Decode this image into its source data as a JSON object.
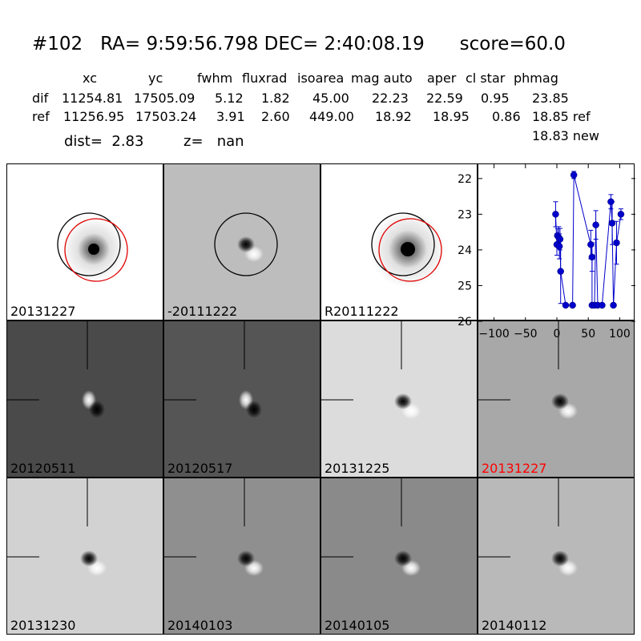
{
  "header": {
    "title": "#102   RA= 9:59:56.798 DEC= 2:40:08.19      score=60.0",
    "columns": [
      "xc",
      "yc",
      "fwhm",
      "fluxrad",
      "isoarea",
      "mag auto",
      "aper",
      "cl star",
      "phmag"
    ],
    "rows": [
      {
        "name": "dif",
        "values": [
          "11254.81",
          "17505.09",
          "5.12",
          "1.82",
          "45.00",
          "22.23",
          "22.59",
          "0.95",
          "23.85"
        ],
        "suffix": ""
      },
      {
        "name": "ref",
        "values": [
          "11256.95",
          "17503.24",
          "3.91",
          "2.60",
          "449.00",
          "18.92",
          "18.95",
          "0.86",
          "18.85 ref"
        ],
        "suffix": ""
      }
    ],
    "new_mag": "18.83 new",
    "dist": "dist=  2.83",
    "z": "z=   nan"
  },
  "panels": [
    {
      "label": "20131227",
      "bg": "#ffffff",
      "kind": "blob",
      "circles": true,
      "red_label": false
    },
    {
      "label": "-20111222",
      "bg": "#bdbdbd",
      "kind": "dipole-dark-top",
      "circles": "black-only",
      "red_label": false
    },
    {
      "label": "R20111222",
      "bg": "#ffffff",
      "kind": "blob-large",
      "circles": true,
      "red_label": false
    },
    {
      "label": "20120511",
      "bg": "#4a4a4a",
      "kind": "dipole-white-left",
      "crosshair": true,
      "red_label": false
    },
    {
      "label": "20120517",
      "bg": "#555555",
      "kind": "dipole-white-left",
      "crosshair": true,
      "red_label": false
    },
    {
      "label": "20131225",
      "bg": "#dcdcdc",
      "kind": "dipole-dark-top",
      "crosshair": true,
      "red_label": false
    },
    {
      "label": "20131227",
      "bg": "#a8a8a8",
      "kind": "dipole-dark-top",
      "crosshair": true,
      "red_label": true
    },
    {
      "label": "20131230",
      "bg": "#d2d2d2",
      "kind": "dipole-dark-top",
      "crosshair": true,
      "red_label": false
    },
    {
      "label": "20140103",
      "bg": "#8f8f8f",
      "kind": "dipole-dark-top",
      "crosshair": true,
      "red_label": false
    },
    {
      "label": "20140105",
      "bg": "#8a8a8a",
      "kind": "dipole-dark-top",
      "crosshair": true,
      "red_label": false
    },
    {
      "label": "20140112",
      "bg": "#b9b9b9",
      "kind": "dipole-dark-top",
      "crosshair": true,
      "red_label": false
    }
  ],
  "chart_data": {
    "type": "scatter",
    "color": "#0000cc",
    "xlim": [
      -125,
      125
    ],
    "ylim": [
      26,
      21.6
    ],
    "ylim_note": "inverted magnitude axis",
    "x_ticks": [
      "-100",
      "-50",
      "0",
      "50",
      "100"
    ],
    "y_ticks": [
      "22",
      "23",
      "24",
      "25",
      "26"
    ],
    "points": [
      {
        "x": -2,
        "y": 23.0,
        "err": 0.35
      },
      {
        "x": 0,
        "y": 23.85,
        "err": 0.3
      },
      {
        "x": 1,
        "y": 23.6,
        "err": 0.2
      },
      {
        "x": 3,
        "y": 23.65,
        "err": 0.3
      },
      {
        "x": 4,
        "y": 23.9,
        "err": 0.35
      },
      {
        "x": 5,
        "y": 23.7,
        "err": 0.3
      },
      {
        "x": 6,
        "y": 24.6,
        "err": 0.9
      },
      {
        "x": 14,
        "y": 25.55,
        "err": 0.0
      },
      {
        "x": 25,
        "y": 25.55,
        "err": 0.0
      },
      {
        "x": 27,
        "y": 21.9,
        "err": 0.1
      },
      {
        "x": 54,
        "y": 23.85,
        "err": 0.4
      },
      {
        "x": 56,
        "y": 24.2,
        "err": 0.4
      },
      {
        "x": 56,
        "y": 25.55,
        "err": 0.0
      },
      {
        "x": 60,
        "y": 25.55,
        "err": 0.0
      },
      {
        "x": 62,
        "y": 23.3,
        "err": 0.4
      },
      {
        "x": 65,
        "y": 25.55,
        "err": 0.0
      },
      {
        "x": 72,
        "y": 25.55,
        "err": 0.0
      },
      {
        "x": 86,
        "y": 22.65,
        "err": 0.2
      },
      {
        "x": 88,
        "y": 23.25,
        "err": 0.6
      },
      {
        "x": 90,
        "y": 25.55,
        "err": 0.0
      },
      {
        "x": 95,
        "y": 23.8,
        "err": 0.6
      },
      {
        "x": 102,
        "y": 23.0,
        "err": 0.15
      }
    ]
  }
}
